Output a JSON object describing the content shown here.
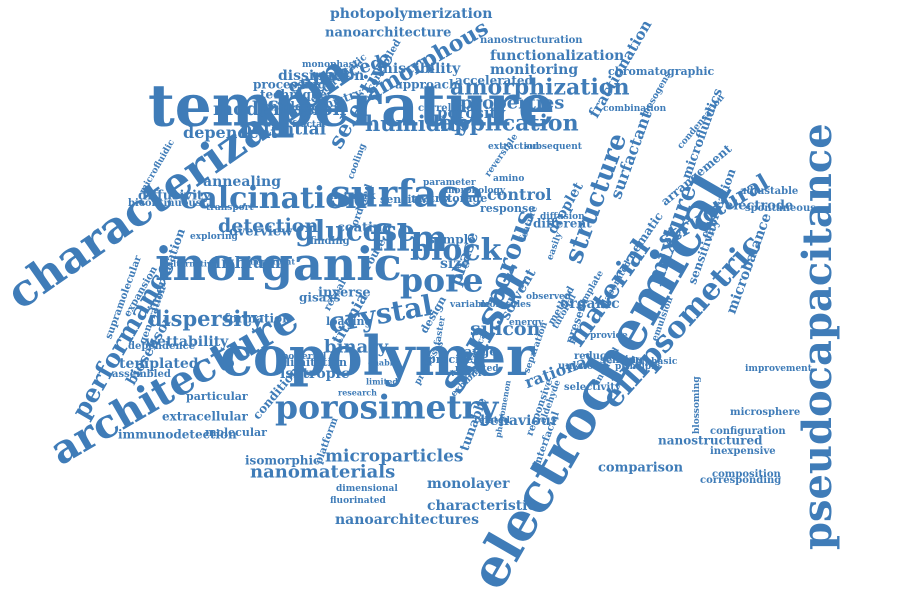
{
  "color": "#3f7cb8",
  "words": [
    "temperature",
    "copolymer",
    "electrochemical",
    "inorganic",
    "characterization",
    "pseudocapacitance",
    "surface",
    "porosimetry",
    "architecture",
    "sensor",
    "film",
    "pore",
    "calcination",
    "ellipsometric",
    "block",
    "amorphization",
    "glucose",
    "crystal",
    "material",
    "structure",
    "mixture",
    "porous",
    "nanomaterials",
    "microparticles",
    "performance",
    "photopolymerization",
    "nanoarchitecture",
    "amorphous",
    "humidity",
    "application",
    "selective",
    "modification",
    "potential",
    "dependent",
    "dispersity",
    "detection",
    "lithium",
    "control",
    "coating",
    "binary",
    "titania",
    "phase",
    "silicon",
    "structural",
    "surfactant",
    "fractionation",
    "functionalization",
    "monitoring",
    "porosity",
    "properties",
    "nanoarchitectures",
    "characteristic",
    "monolayer",
    "isomorphic",
    "immunodetection",
    "extracellular",
    "biosensor",
    "templated",
    "wettability",
    "behaviour",
    "isotropic",
    "comparison",
    "nanostructured",
    "microbalance",
    "microfluidics",
    "fabrication",
    "sensitivity",
    "dissipation",
    "miscibility",
    "enhanced",
    "technique",
    "diffusivity",
    "annealing",
    "overview",
    "intercalation",
    "rational",
    "organic",
    "solvent",
    "droplet",
    "nematic",
    "arrangement",
    "electrode",
    "spontaneous",
    "adjustable",
    "microsphere",
    "configuration",
    "inexpensive",
    "composition",
    "chromatographic",
    "nanostructuration",
    "accelerated",
    "approach",
    "processing",
    "challenge",
    "chemistry",
    "monophasic",
    "supramolecular",
    "bicontinuous",
    "microfluidic",
    "expansion",
    "dependence",
    "generation",
    "assembled",
    "particular",
    "molecular",
    "condition",
    "platform",
    "tunable",
    "reversible",
    "formation",
    "loading",
    "sample",
    "different",
    "size",
    "design",
    "range",
    "precise",
    "vesicle",
    "limitation",
    "powerful",
    "exploring",
    "transport",
    "important",
    "alternative",
    "gisaxs",
    "inverse",
    "reveal",
    "finding",
    "route",
    "network",
    "sensitive",
    "matrix",
    "storage",
    "response",
    "diffusion",
    "ordered",
    "electrostatic",
    "controlled",
    "correlation",
    "combination",
    "extraction",
    "subsequent",
    "mesogens",
    "condensation",
    "improvement",
    "corresponding",
    "blossoming",
    "phenomenon",
    "responsive",
    "interfacial",
    "fluorinated",
    "dimensional",
    "research",
    "enable",
    "limited",
    "exhibit",
    "reduced",
    "sensing",
    "induced",
    "principle",
    "biphasic",
    "provide",
    "present",
    "method",
    "tutorial",
    "template",
    "elaborated",
    "emulsion",
    "morphology",
    "cooling",
    "fractal",
    "parameter",
    "feature",
    "faster",
    "easily",
    "unknown",
    "related",
    "selectivity",
    "aldehyde",
    "reported",
    "separation",
    "critical",
    "processes",
    "variable",
    "molecules",
    "observed",
    "energy",
    "amino",
    "study",
    "result",
    "wavelength"
  ]
}
